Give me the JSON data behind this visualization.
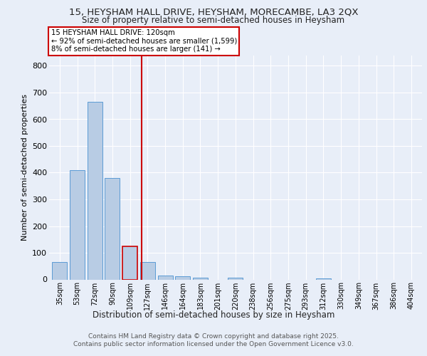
{
  "title1": "15, HEYSHAM HALL DRIVE, HEYSHAM, MORECAMBE, LA3 2QX",
  "title2": "Size of property relative to semi-detached houses in Heysham",
  "xlabel": "Distribution of semi-detached houses by size in Heysham",
  "ylabel": "Number of semi-detached properties",
  "categories": [
    "35sqm",
    "53sqm",
    "72sqm",
    "90sqm",
    "109sqm",
    "127sqm",
    "146sqm",
    "164sqm",
    "183sqm",
    "201sqm",
    "220sqm",
    "238sqm",
    "256sqm",
    "275sqm",
    "293sqm",
    "312sqm",
    "330sqm",
    "349sqm",
    "367sqm",
    "386sqm",
    "404sqm"
  ],
  "values": [
    65,
    410,
    665,
    380,
    125,
    65,
    15,
    12,
    8,
    0,
    6,
    0,
    0,
    0,
    0,
    5,
    0,
    0,
    0,
    0,
    0
  ],
  "bar_color": "#b8cce4",
  "bar_edge_color": "#5b9bd5",
  "highlight_bar_index": 4,
  "highlight_bar_color": "#b8cce4",
  "highlight_bar_edge_color": "#cc0000",
  "vline_x": 4.65,
  "vline_color": "#cc0000",
  "annotation_title": "15 HEYSHAM HALL DRIVE: 120sqm",
  "annotation_line1": "← 92% of semi-detached houses are smaller (1,599)",
  "annotation_line2": "8% of semi-detached houses are larger (141) →",
  "annotation_box_color": "#ffffff",
  "annotation_box_edge": "#cc0000",
  "ylim": [
    0,
    840
  ],
  "yticks": [
    0,
    100,
    200,
    300,
    400,
    500,
    600,
    700,
    800
  ],
  "footer1": "Contains HM Land Registry data © Crown copyright and database right 2025.",
  "footer2": "Contains public sector information licensed under the Open Government Licence v3.0.",
  "bg_color": "#e8eef8",
  "plot_bg_color": "#e8eef8"
}
